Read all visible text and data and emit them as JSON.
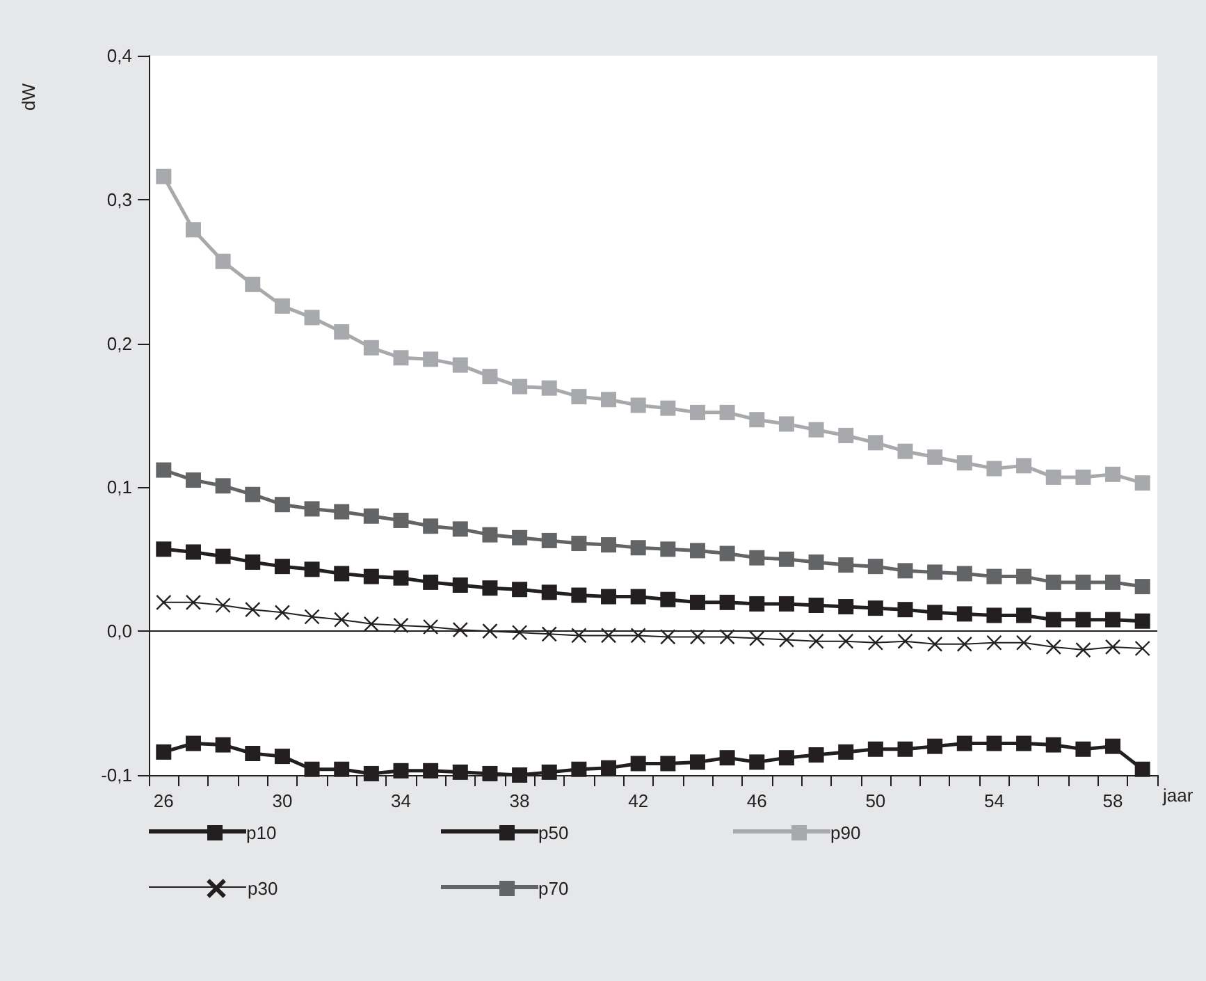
{
  "chart_data": {
    "type": "line",
    "xlabel": "jaar",
    "ylabel": "dW",
    "categories": [
      "26",
      null,
      null,
      null,
      "30",
      null,
      null,
      null,
      "34",
      null,
      null,
      null,
      "38",
      null,
      null,
      null,
      "42",
      null,
      null,
      null,
      "46",
      null,
      null,
      null,
      "50",
      null,
      null,
      null,
      "54",
      null,
      null,
      null,
      "58",
      null
    ],
    "ylim": [
      -0.1,
      0.4
    ],
    "yticks": [
      {
        "value": -0.1,
        "label": "-0,1"
      },
      {
        "value": 0,
        "label": "0,0"
      },
      {
        "value": 0.1,
        "label": "0,1"
      },
      {
        "value": 0.2,
        "label": "0,2"
      },
      {
        "value": 0.3,
        "label": "0,3"
      },
      {
        "value": 0.4,
        "label": "0,4"
      }
    ],
    "grid": false,
    "legend": "bottom",
    "ref_lines": [
      {
        "axis": "y",
        "value": 0,
        "color": "#231f20",
        "line_style": "solid"
      }
    ],
    "series": [
      {
        "name": "p10",
        "color": "#231f20",
        "marker": "square",
        "values": [
          -0.084,
          -0.078,
          -0.079,
          -0.085,
          -0.087,
          -0.096,
          -0.096,
          -0.099,
          -0.097,
          -0.097,
          -0.098,
          -0.099,
          -0.1,
          -0.098,
          -0.096,
          -0.095,
          -0.092,
          -0.092,
          -0.091,
          -0.088,
          -0.091,
          -0.088,
          -0.086,
          -0.084,
          -0.082,
          -0.082,
          -0.08,
          -0.078,
          -0.078,
          -0.078,
          -0.079,
          -0.082,
          -0.08,
          -0.096
        ]
      },
      {
        "name": "p50",
        "color": "#231f20",
        "marker": "square",
        "values": [
          0.057,
          0.055,
          0.052,
          0.048,
          0.045,
          0.043,
          0.04,
          0.038,
          0.037,
          0.034,
          0.032,
          0.03,
          0.029,
          0.027,
          0.025,
          0.024,
          0.024,
          0.022,
          0.02,
          0.02,
          0.019,
          0.019,
          0.018,
          0.017,
          0.016,
          0.015,
          0.013,
          0.012,
          0.011,
          0.011,
          0.008,
          0.008,
          0.008,
          0.007
        ]
      },
      {
        "name": "p90",
        "color": "#a7a9ac",
        "marker": "square",
        "values": [
          0.316,
          0.279,
          0.257,
          0.241,
          0.226,
          0.218,
          0.208,
          0.197,
          0.19,
          0.189,
          0.185,
          0.177,
          0.17,
          0.169,
          0.163,
          0.161,
          0.157,
          0.155,
          0.152,
          0.152,
          0.147,
          0.144,
          0.14,
          0.136,
          0.131,
          0.125,
          0.121,
          0.117,
          0.113,
          0.115,
          0.107,
          0.107,
          0.109,
          0.103
        ]
      },
      {
        "name": "p30",
        "color": "#231f20",
        "marker": "cross",
        "values": [
          0.02,
          0.02,
          0.018,
          0.015,
          0.013,
          0.01,
          0.008,
          0.005,
          0.004,
          0.003,
          0.001,
          0.0,
          -0.001,
          -0.002,
          -0.003,
          -0.003,
          -0.003,
          -0.004,
          -0.004,
          -0.004,
          -0.005,
          -0.006,
          -0.007,
          -0.007,
          -0.008,
          -0.007,
          -0.009,
          -0.009,
          -0.008,
          -0.008,
          -0.011,
          -0.013,
          -0.011,
          -0.012
        ]
      },
      {
        "name": "p70",
        "color": "#636466",
        "marker": "square",
        "values": [
          0.112,
          0.105,
          0.101,
          0.095,
          0.088,
          0.085,
          0.083,
          0.08,
          0.077,
          0.073,
          0.071,
          0.067,
          0.065,
          0.063,
          0.061,
          0.06,
          0.058,
          0.057,
          0.056,
          0.054,
          0.051,
          0.05,
          0.048,
          0.046,
          0.045,
          0.042,
          0.041,
          0.04,
          0.038,
          0.038,
          0.034,
          0.034,
          0.034,
          0.031
        ]
      }
    ]
  }
}
